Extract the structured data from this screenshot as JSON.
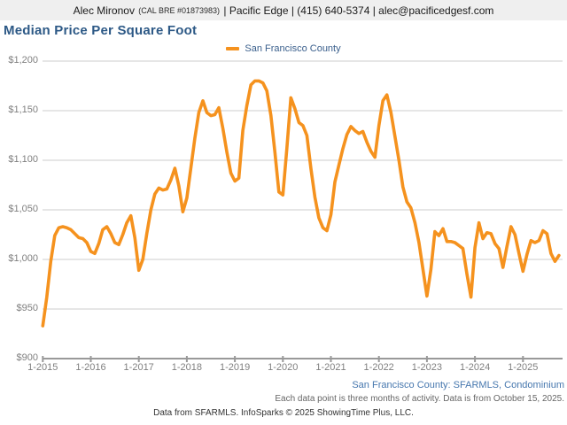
{
  "header": {
    "agent_name": "Alec Mironov ",
    "license": "(CAL BRE #01873983)",
    "contact": " | Pacific Edge | (415) 640-5374 | alec@pacificedgesf.com"
  },
  "title": "Median Price Per Square Foot",
  "legend": {
    "label": "San Francisco County",
    "swatch_color": "#f5921e"
  },
  "footer": {
    "source_line": "San Francisco County: SFARMLS, Condominium",
    "note_line": "Each data point is three months of activity. Data is from October 15, 2025.",
    "copyright_line": "Data from SFARMLS. InfoSparks © 2025 ShowingTime Plus, LLC."
  },
  "chart_data": {
    "type": "line",
    "title": "Median Price Per Square Foot",
    "x_start": "2015-01",
    "x_end": "2025-10",
    "frequency": "monthly",
    "x_tick_labels": [
      "1-2015",
      "1-2016",
      "1-2017",
      "1-2018",
      "1-2019",
      "1-2020",
      "1-2021",
      "1-2022",
      "1-2023",
      "1-2024",
      "1-2025"
    ],
    "y_ticks": [
      900,
      950,
      1000,
      1050,
      1100,
      1150,
      1200
    ],
    "y_tick_labels": [
      "$900",
      "$950",
      "$1,000",
      "$1,050",
      "$1,100",
      "$1,150",
      "$1,200"
    ],
    "ylim": [
      900,
      1200
    ],
    "grid": "horizontal",
    "legend_position": "top-center",
    "colors": {
      "line": "#f5921e",
      "gridline": "#cccccc",
      "axis": "#999999",
      "tick_text": "#7f7f7f"
    },
    "series": [
      {
        "name": "San Francisco County",
        "color": "#f5921e",
        "values": [
          933,
          962,
          998,
          1024,
          1032,
          1033,
          1032,
          1030,
          1026,
          1022,
          1021,
          1017,
          1008,
          1006,
          1016,
          1030,
          1033,
          1026,
          1017,
          1015,
          1025,
          1037,
          1044,
          1022,
          989,
          1000,
          1026,
          1050,
          1066,
          1072,
          1070,
          1071,
          1080,
          1092,
          1074,
          1048,
          1062,
          1092,
          1122,
          1148,
          1160,
          1148,
          1145,
          1146,
          1153,
          1132,
          1108,
          1087,
          1079,
          1082,
          1130,
          1155,
          1176,
          1180,
          1180,
          1178,
          1170,
          1145,
          1108,
          1068,
          1065,
          1112,
          1163,
          1152,
          1138,
          1135,
          1125,
          1092,
          1063,
          1042,
          1032,
          1029,
          1045,
          1078,
          1095,
          1112,
          1126,
          1134,
          1130,
          1127,
          1129,
          1118,
          1109,
          1103,
          1135,
          1160,
          1166,
          1148,
          1124,
          1100,
          1073,
          1058,
          1052,
          1037,
          1017,
          990,
          963,
          990,
          1028,
          1024,
          1031,
          1018,
          1018,
          1017,
          1014,
          1011,
          985,
          962,
          1012,
          1037,
          1021,
          1027,
          1026,
          1016,
          1011,
          992,
          1013,
          1033,
          1025,
          1006,
          988,
          1005,
          1019,
          1017,
          1019,
          1029,
          1026,
          1006,
          998,
          1004
        ]
      }
    ]
  }
}
